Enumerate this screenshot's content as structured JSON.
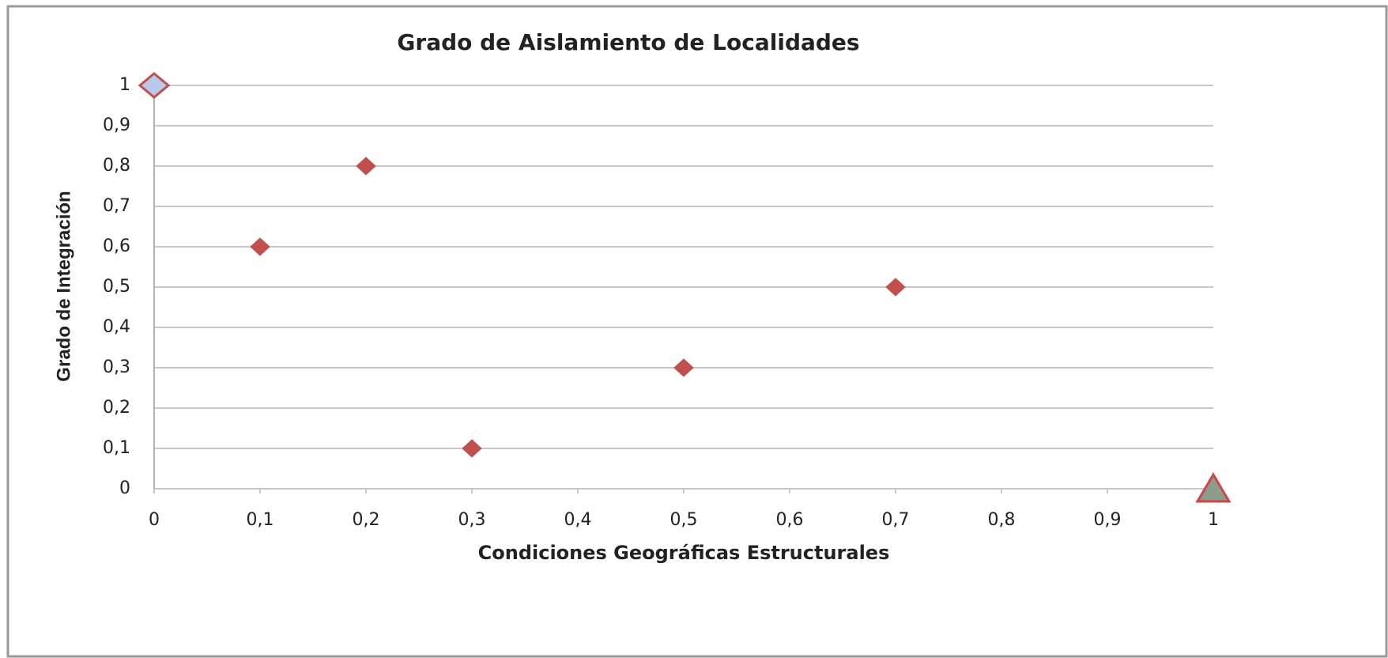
{
  "chart_data": {
    "type": "scatter",
    "title": "Grado de Aislamiento de Localidades",
    "xlabel": "Condiciones Geográficas Estructurales",
    "ylabel": "Grado de Integración",
    "xlim": [
      0,
      1
    ],
    "ylim": [
      0,
      1
    ],
    "xticks": [
      0,
      {
        "value": 0.1,
        "label": "0,1"
      },
      {
        "value": 0.2,
        "label": "0,2"
      },
      {
        "value": 0.3,
        "label": "0,3"
      },
      {
        "value": 0.4,
        "label": "0,4"
      },
      {
        "value": 0.5,
        "label": "0,5"
      },
      {
        "value": 0.6,
        "label": "0,6"
      },
      {
        "value": 0.7,
        "label": "0,7"
      },
      {
        "value": 0.8,
        "label": "0,8"
      },
      {
        "value": 0.9,
        "label": "0,9"
      },
      1
    ],
    "yticks": [
      0,
      {
        "value": 0.1,
        "label": "0,1"
      },
      {
        "value": 0.2,
        "label": "0,2"
      },
      {
        "value": 0.3,
        "label": "0,3"
      },
      {
        "value": 0.4,
        "label": "0,4"
      },
      {
        "value": 0.5,
        "label": "0,5"
      },
      {
        "value": 0.6,
        "label": "0,6"
      },
      {
        "value": 0.7,
        "label": "0,7"
      },
      {
        "value": 0.8,
        "label": "0,8"
      },
      {
        "value": 0.9,
        "label": "0,9"
      },
      1
    ],
    "grid": true,
    "series": [
      {
        "color": "#c0504d",
        "marker": "diamond",
        "x": [
          0.1,
          0.2,
          0.3,
          0.5,
          0.7
        ],
        "values": [
          0.6,
          0.8,
          0.1,
          0.3,
          0.5
        ]
      },
      {
        "color": "#b9c9ea",
        "edgecolor": "#c0504d",
        "marker": "big-diamond",
        "x": [
          0
        ],
        "values": [
          1
        ]
      },
      {
        "color": "#8c9c8c",
        "edgecolor": "#d04545",
        "marker": "triangle",
        "x": [
          1
        ],
        "values": [
          0
        ]
      }
    ]
  }
}
